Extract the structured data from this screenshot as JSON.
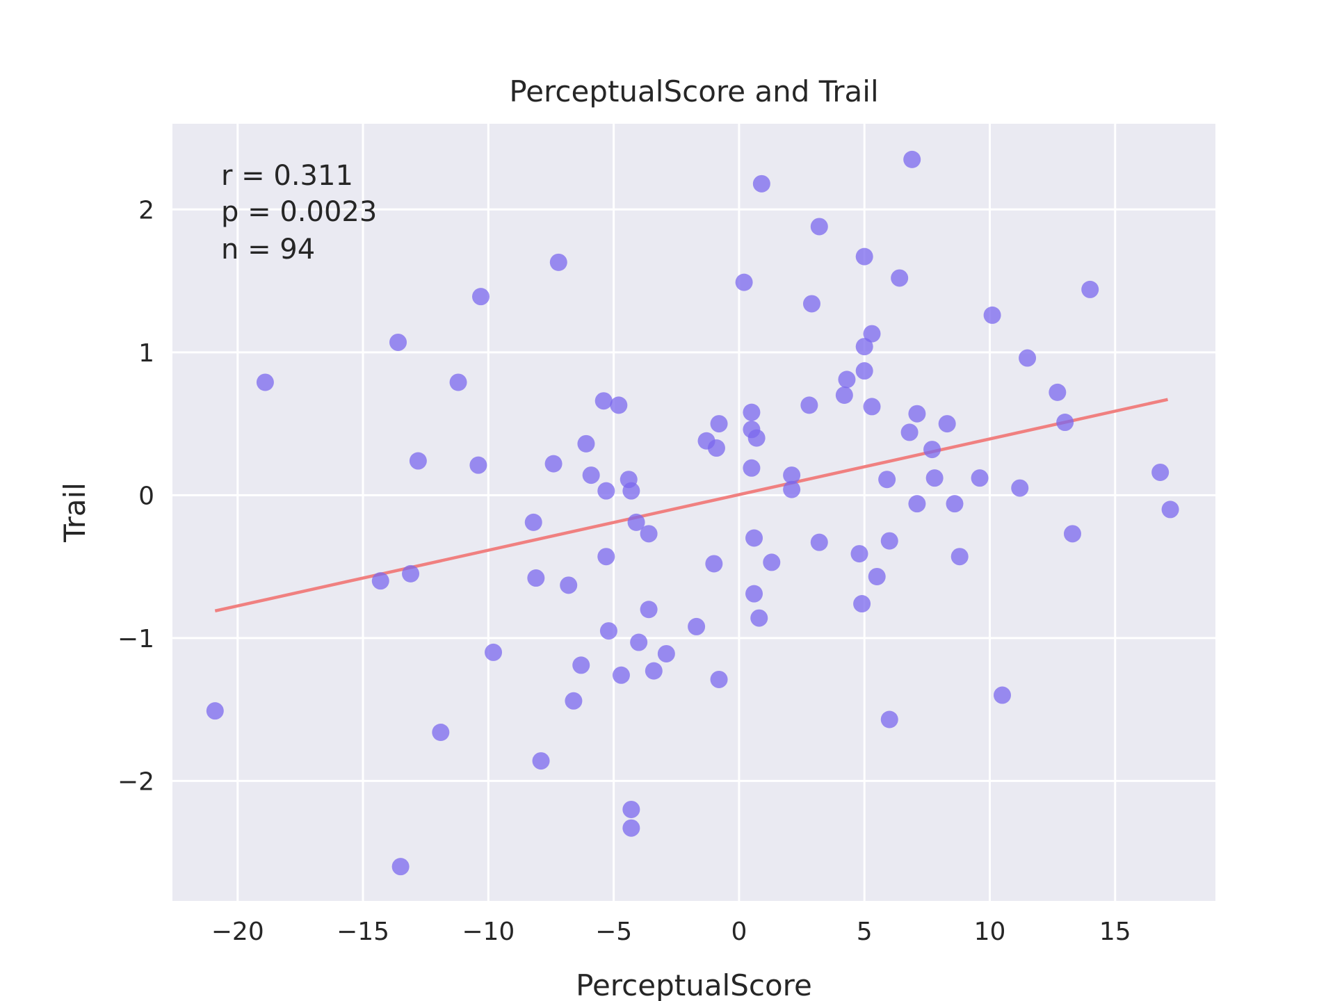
{
  "chart_data": {
    "type": "scatter",
    "title": "PerceptualScore and Trail",
    "xlabel": "PerceptualScore",
    "ylabel": "Trail",
    "xlim": [
      -22.6,
      19.0
    ],
    "ylim": [
      -2.84,
      2.6
    ],
    "xticks": [
      -20,
      -15,
      -10,
      -5,
      0,
      5,
      10,
      15
    ],
    "xtick_labels": [
      "−20",
      "−15",
      "−10",
      "−5",
      "0",
      "5",
      "10",
      "15"
    ],
    "yticks": [
      -2,
      -1,
      0,
      1,
      2
    ],
    "ytick_labels": [
      "−2",
      "−1",
      "0",
      "1",
      "2"
    ],
    "grid": true,
    "background": "#eaeaf2",
    "point_color": "#7b68ee",
    "line_color": "#f08080",
    "stats": [
      "r = 0.311",
      "p = 0.0023",
      "n = 94"
    ],
    "fit_line": {
      "x": [
        -20.9,
        17.1
      ],
      "y": [
        -0.81,
        0.67
      ]
    },
    "points": [
      [
        -18.9,
        0.79
      ],
      [
        -20.9,
        -1.51
      ],
      [
        -14.3,
        -0.6
      ],
      [
        -13.1,
        -0.55
      ],
      [
        -13.6,
        1.07
      ],
      [
        -12.8,
        0.24
      ],
      [
        -11.2,
        0.79
      ],
      [
        -10.3,
        1.39
      ],
      [
        -10.4,
        0.21
      ],
      [
        -9.8,
        -1.1
      ],
      [
        -11.9,
        -1.66
      ],
      [
        -13.5,
        -2.6
      ],
      [
        -8.2,
        -0.19
      ],
      [
        -8.1,
        -0.58
      ],
      [
        -7.9,
        -1.86
      ],
      [
        -7.2,
        1.63
      ],
      [
        -7.4,
        0.22
      ],
      [
        -6.8,
        -0.63
      ],
      [
        -6.1,
        0.36
      ],
      [
        -5.9,
        0.14
      ],
      [
        -5.4,
        0.66
      ],
      [
        -5.3,
        0.03
      ],
      [
        -4.8,
        0.63
      ],
      [
        -5.3,
        -0.43
      ],
      [
        -6.6,
        -1.44
      ],
      [
        -6.3,
        -1.19
      ],
      [
        -5.2,
        -0.95
      ],
      [
        -4.7,
        -1.26
      ],
      [
        -4.4,
        0.11
      ],
      [
        -4.3,
        0.03
      ],
      [
        -4.1,
        -0.19
      ],
      [
        -3.6,
        -0.27
      ],
      [
        -4.0,
        -1.03
      ],
      [
        -3.6,
        -0.8
      ],
      [
        -3.4,
        -1.23
      ],
      [
        -2.9,
        -1.11
      ],
      [
        -4.3,
        -2.2
      ],
      [
        -4.3,
        -2.33
      ],
      [
        -1.7,
        -0.92
      ],
      [
        -1.3,
        0.38
      ],
      [
        -0.8,
        0.5
      ],
      [
        -0.9,
        0.33
      ],
      [
        -1.0,
        -0.48
      ],
      [
        -0.8,
        -1.29
      ],
      [
        0.2,
        1.49
      ],
      [
        0.9,
        2.18
      ],
      [
        0.5,
        0.58
      ],
      [
        0.5,
        0.46
      ],
      [
        0.7,
        0.4
      ],
      [
        0.5,
        0.19
      ],
      [
        0.6,
        -0.3
      ],
      [
        1.3,
        -0.47
      ],
      [
        0.6,
        -0.69
      ],
      [
        0.8,
        -0.86
      ],
      [
        2.1,
        0.14
      ],
      [
        2.1,
        0.04
      ],
      [
        2.8,
        0.63
      ],
      [
        2.9,
        1.34
      ],
      [
        3.2,
        1.88
      ],
      [
        3.2,
        -0.33
      ],
      [
        4.2,
        0.7
      ],
      [
        4.3,
        0.81
      ],
      [
        5.0,
        1.67
      ],
      [
        5.0,
        1.04
      ],
      [
        5.0,
        0.87
      ],
      [
        5.3,
        1.13
      ],
      [
        5.3,
        0.62
      ],
      [
        4.8,
        -0.41
      ],
      [
        5.5,
        -0.57
      ],
      [
        4.9,
        -0.76
      ],
      [
        6.4,
        1.52
      ],
      [
        5.9,
        0.11
      ],
      [
        6.0,
        -0.32
      ],
      [
        6.0,
        -1.57
      ],
      [
        6.8,
        0.44
      ],
      [
        7.1,
        0.57
      ],
      [
        7.7,
        0.32
      ],
      [
        7.1,
        -0.06
      ],
      [
        7.8,
        0.12
      ],
      [
        6.9,
        2.35
      ],
      [
        8.3,
        0.5
      ],
      [
        8.6,
        -0.06
      ],
      [
        8.8,
        -0.43
      ],
      [
        9.6,
        0.12
      ],
      [
        10.1,
        1.26
      ],
      [
        11.5,
        0.96
      ],
      [
        11.2,
        0.05
      ],
      [
        10.5,
        -1.4
      ],
      [
        12.7,
        0.72
      ],
      [
        13.0,
        0.51
      ],
      [
        13.3,
        -0.27
      ],
      [
        14.0,
        1.44
      ],
      [
        16.8,
        0.16
      ],
      [
        17.2,
        -0.1
      ]
    ]
  }
}
